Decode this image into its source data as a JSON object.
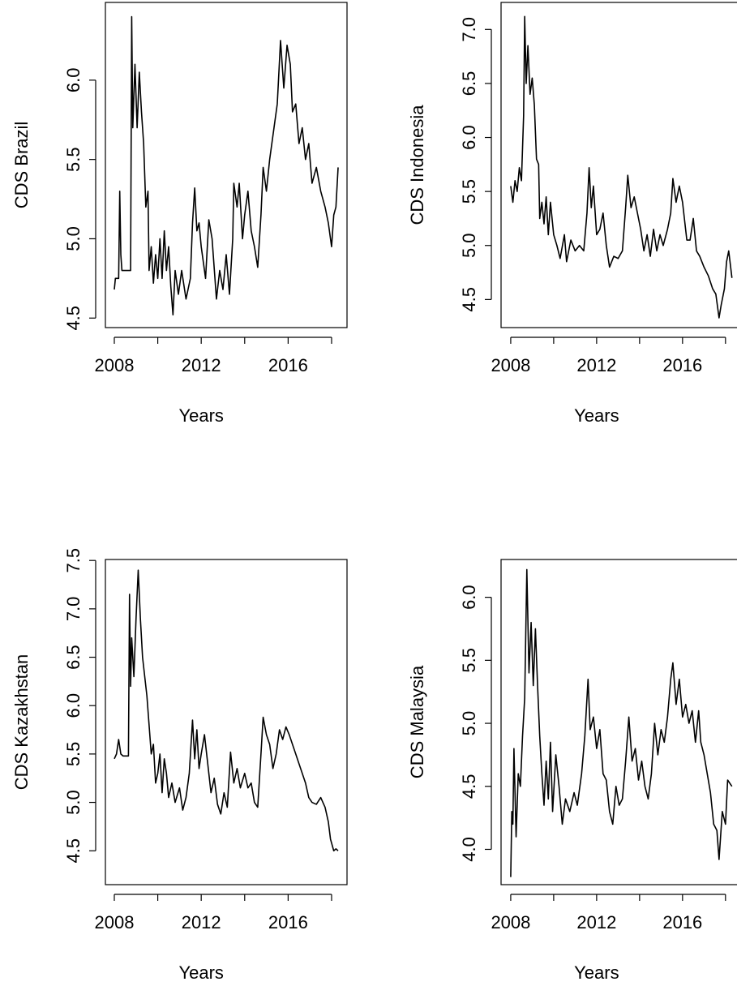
{
  "chart_data": [
    {
      "type": "line",
      "ylabel": "CDS Brazil",
      "xlabel": "Years",
      "color": "#000000",
      "xlim": [
        2007.59,
        2018.71
      ],
      "xticks": [
        2008,
        2012,
        2016
      ],
      "xminorticks": [
        2010,
        2014,
        2018
      ],
      "ylim": [
        4.44,
        6.49
      ],
      "yticks": [
        4.5,
        {
          "value": 5.0,
          "label": "5.0"
        },
        5.5,
        {
          "value": 6.0,
          "label": "6.0"
        }
      ],
      "x": [
        2008.0,
        2008.05,
        2008.2,
        2008.25,
        2008.3,
        2008.35,
        2008.75,
        2008.8,
        2008.85,
        2008.95,
        2009.05,
        2009.15,
        2009.25,
        2009.35,
        2009.45,
        2009.55,
        2009.6,
        2009.7,
        2009.8,
        2009.9,
        2010.0,
        2010.1,
        2010.2,
        2010.3,
        2010.4,
        2010.5,
        2010.6,
        2010.7,
        2010.8,
        2010.95,
        2011.1,
        2011.3,
        2011.5,
        2011.6,
        2011.7,
        2011.8,
        2011.9,
        2012.0,
        2012.2,
        2012.35,
        2012.5,
        2012.7,
        2012.85,
        2013.0,
        2013.15,
        2013.3,
        2013.45,
        2013.5,
        2013.65,
        2013.75,
        2013.9,
        2014.0,
        2014.15,
        2014.3,
        2014.45,
        2014.6,
        2014.75,
        2014.85,
        2015.0,
        2015.15,
        2015.35,
        2015.5,
        2015.65,
        2015.8,
        2015.95,
        2016.1,
        2016.2,
        2016.35,
        2016.5,
        2016.65,
        2016.8,
        2016.95,
        2017.1,
        2017.3,
        2017.5,
        2017.7,
        2017.85,
        2018.0,
        2018.1,
        2018.2,
        2018.3
      ],
      "values": [
        4.68,
        4.75,
        4.75,
        5.3,
        4.9,
        4.8,
        4.8,
        6.4,
        5.7,
        6.1,
        5.7,
        6.05,
        5.8,
        5.6,
        5.2,
        5.3,
        4.8,
        4.95,
        4.72,
        4.9,
        4.75,
        5.0,
        4.75,
        5.05,
        4.8,
        4.95,
        4.7,
        4.52,
        4.8,
        4.65,
        4.8,
        4.62,
        4.75,
        5.1,
        5.32,
        5.05,
        5.1,
        4.95,
        4.75,
        5.12,
        5.0,
        4.62,
        4.8,
        4.68,
        4.9,
        4.65,
        5.0,
        5.35,
        5.2,
        5.35,
        5.0,
        5.15,
        5.3,
        5.05,
        4.95,
        4.82,
        5.15,
        5.45,
        5.3,
        5.5,
        5.7,
        5.85,
        6.25,
        5.95,
        6.22,
        6.1,
        5.8,
        5.85,
        5.6,
        5.7,
        5.5,
        5.6,
        5.35,
        5.45,
        5.3,
        5.2,
        5.1,
        4.95,
        5.15,
        5.2,
        5.45
      ]
    },
    {
      "type": "line",
      "ylabel": "CDS Indonesia",
      "xlabel": "Years",
      "color": "#000000",
      "xlim": [
        2007.55,
        2018.8
      ],
      "xticks": [
        2008,
        2012,
        2016
      ],
      "xminorticks": [
        2010,
        2014,
        2018
      ],
      "ylim": [
        4.24,
        7.25
      ],
      "yticks": [
        4.5,
        {
          "value": 5.0,
          "label": "5.0"
        },
        5.5,
        {
          "value": 6.0,
          "label": "6.0"
        },
        6.5,
        {
          "value": 7.0,
          "label": "7.0"
        }
      ],
      "x": [
        2008.0,
        2008.1,
        2008.2,
        2008.3,
        2008.4,
        2008.5,
        2008.6,
        2008.65,
        2008.72,
        2008.8,
        2008.9,
        2009.0,
        2009.1,
        2009.2,
        2009.3,
        2009.35,
        2009.45,
        2009.55,
        2009.65,
        2009.75,
        2009.85,
        2010.0,
        2010.15,
        2010.3,
        2010.5,
        2010.6,
        2010.8,
        2011.0,
        2011.2,
        2011.4,
        2011.55,
        2011.65,
        2011.75,
        2011.85,
        2012.0,
        2012.15,
        2012.3,
        2012.45,
        2012.6,
        2012.8,
        2013.0,
        2013.2,
        2013.35,
        2013.45,
        2013.6,
        2013.75,
        2013.9,
        2014.05,
        2014.2,
        2014.35,
        2014.5,
        2014.65,
        2014.8,
        2014.95,
        2015.1,
        2015.3,
        2015.45,
        2015.55,
        2015.7,
        2015.85,
        2016.0,
        2016.2,
        2016.35,
        2016.5,
        2016.65,
        2016.8,
        2017.0,
        2017.2,
        2017.4,
        2017.55,
        2017.7,
        2017.8,
        2017.95,
        2018.05,
        2018.15,
        2018.3
      ],
      "values": [
        5.55,
        5.4,
        5.6,
        5.5,
        5.72,
        5.6,
        6.2,
        7.12,
        6.5,
        6.85,
        6.4,
        6.55,
        6.3,
        5.8,
        5.75,
        5.25,
        5.4,
        5.2,
        5.45,
        5.1,
        5.4,
        5.1,
        5.0,
        4.88,
        5.1,
        4.85,
        5.05,
        4.95,
        5.0,
        4.95,
        5.3,
        5.72,
        5.35,
        5.55,
        5.1,
        5.15,
        5.3,
        5.0,
        4.8,
        4.9,
        4.88,
        4.95,
        5.35,
        5.65,
        5.35,
        5.45,
        5.3,
        5.15,
        4.95,
        5.1,
        4.9,
        5.15,
        4.95,
        5.1,
        5.0,
        5.15,
        5.3,
        5.62,
        5.4,
        5.55,
        5.4,
        5.05,
        5.05,
        5.25,
        4.95,
        4.9,
        4.8,
        4.72,
        4.6,
        4.55,
        4.33,
        4.45,
        4.6,
        4.85,
        4.95,
        4.7
      ]
    },
    {
      "type": "line",
      "ylabel": "CDS Kazakhstan",
      "xlabel": "Years",
      "color": "#000000",
      "xlim": [
        2007.59,
        2018.71
      ],
      "xticks": [
        2008,
        2012,
        2016
      ],
      "xminorticks": [
        2010,
        2014,
        2018
      ],
      "ylim": [
        4.15,
        7.51
      ],
      "yticks": [
        4.5,
        {
          "value": 5.0,
          "label": "5.0"
        },
        5.5,
        {
          "value": 6.0,
          "label": "6.0"
        },
        6.5,
        {
          "value": 7.0,
          "label": "7.0"
        },
        7.5
      ],
      "x": [
        2008.0,
        2008.1,
        2008.2,
        2008.3,
        2008.4,
        2008.65,
        2008.7,
        2008.75,
        2008.8,
        2008.9,
        2009.0,
        2009.1,
        2009.2,
        2009.3,
        2009.4,
        2009.5,
        2009.6,
        2009.7,
        2009.8,
        2009.9,
        2010.0,
        2010.1,
        2010.2,
        2010.3,
        2010.4,
        2010.5,
        2010.65,
        2010.8,
        2011.0,
        2011.15,
        2011.3,
        2011.45,
        2011.6,
        2011.7,
        2011.8,
        2011.9,
        2012.0,
        2012.15,
        2012.3,
        2012.45,
        2012.6,
        2012.75,
        2012.9,
        2013.05,
        2013.2,
        2013.35,
        2013.5,
        2013.65,
        2013.8,
        2014.0,
        2014.15,
        2014.3,
        2014.45,
        2014.6,
        2014.75,
        2014.85,
        2015.0,
        2015.15,
        2015.3,
        2015.45,
        2015.6,
        2015.75,
        2015.9,
        2016.05,
        2016.2,
        2016.35,
        2016.5,
        2016.65,
        2016.8,
        2016.95,
        2017.1,
        2017.3,
        2017.5,
        2017.7,
        2017.85,
        2017.95,
        2018.1,
        2018.2,
        2018.3
      ],
      "values": [
        5.45,
        5.5,
        5.65,
        5.5,
        5.48,
        5.48,
        7.15,
        6.2,
        6.7,
        6.3,
        6.9,
        7.4,
        6.9,
        6.5,
        6.3,
        6.1,
        5.8,
        5.5,
        5.6,
        5.2,
        5.3,
        5.5,
        5.1,
        5.45,
        5.3,
        5.05,
        5.2,
        5.0,
        5.15,
        4.92,
        5.05,
        5.3,
        5.85,
        5.45,
        5.75,
        5.35,
        5.5,
        5.7,
        5.4,
        5.1,
        5.25,
        4.98,
        4.88,
        5.1,
        4.95,
        5.52,
        5.2,
        5.35,
        5.15,
        5.3,
        5.15,
        5.2,
        5.0,
        4.95,
        5.5,
        5.88,
        5.7,
        5.6,
        5.35,
        5.5,
        5.75,
        5.65,
        5.78,
        5.7,
        5.6,
        5.5,
        5.4,
        5.3,
        5.2,
        5.05,
        5.0,
        4.98,
        5.05,
        4.95,
        4.8,
        4.62,
        4.5,
        4.52,
        4.5
      ]
    },
    {
      "type": "line",
      "ylabel": "CDS Malaysia",
      "xlabel": "Years",
      "color": "#000000",
      "xlim": [
        2007.55,
        2018.8
      ],
      "xticks": [
        2008,
        2012,
        2016
      ],
      "xminorticks": [
        2010,
        2014,
        2018
      ],
      "ylim": [
        3.72,
        6.3
      ],
      "yticks": [
        {
          "value": 4.0,
          "label": "4.0"
        },
        4.5,
        {
          "value": 5.0,
          "label": "5.0"
        },
        5.5,
        {
          "value": 6.0,
          "label": "6.0"
        }
      ],
      "x": [
        2008.0,
        2008.05,
        2008.1,
        2008.15,
        2008.25,
        2008.35,
        2008.45,
        2008.55,
        2008.65,
        2008.75,
        2008.85,
        2008.95,
        2009.05,
        2009.15,
        2009.25,
        2009.35,
        2009.45,
        2009.55,
        2009.65,
        2009.75,
        2009.85,
        2009.95,
        2010.1,
        2010.25,
        2010.4,
        2010.55,
        2010.75,
        2010.95,
        2011.1,
        2011.3,
        2011.45,
        2011.6,
        2011.7,
        2011.85,
        2012.0,
        2012.15,
        2012.3,
        2012.45,
        2012.6,
        2012.75,
        2012.9,
        2013.05,
        2013.2,
        2013.35,
        2013.5,
        2013.65,
        2013.8,
        2013.95,
        2014.1,
        2014.25,
        2014.4,
        2014.55,
        2014.7,
        2014.85,
        2015.0,
        2015.15,
        2015.3,
        2015.45,
        2015.55,
        2015.7,
        2015.85,
        2016.0,
        2016.15,
        2016.3,
        2016.45,
        2016.6,
        2016.75,
        2016.85,
        2017.0,
        2017.15,
        2017.3,
        2017.45,
        2017.6,
        2017.7,
        2017.85,
        2018.0,
        2018.1,
        2018.3
      ],
      "values": [
        3.78,
        4.3,
        4.2,
        4.8,
        4.1,
        4.6,
        4.5,
        4.9,
        5.2,
        6.22,
        5.4,
        5.8,
        5.3,
        5.75,
        5.3,
        4.9,
        4.6,
        4.35,
        4.7,
        4.4,
        4.85,
        4.3,
        4.75,
        4.5,
        4.2,
        4.4,
        4.3,
        4.45,
        4.35,
        4.6,
        4.9,
        5.35,
        4.95,
        5.05,
        4.8,
        4.95,
        4.6,
        4.55,
        4.3,
        4.2,
        4.5,
        4.35,
        4.4,
        4.7,
        5.05,
        4.7,
        4.8,
        4.55,
        4.7,
        4.5,
        4.4,
        4.6,
        5.0,
        4.75,
        4.95,
        4.85,
        5.05,
        5.35,
        5.48,
        5.15,
        5.35,
        5.05,
        5.15,
        5.0,
        5.1,
        4.85,
        5.1,
        4.85,
        4.75,
        4.6,
        4.45,
        4.2,
        4.15,
        3.92,
        4.3,
        4.2,
        4.55,
        4.5
      ]
    }
  ]
}
